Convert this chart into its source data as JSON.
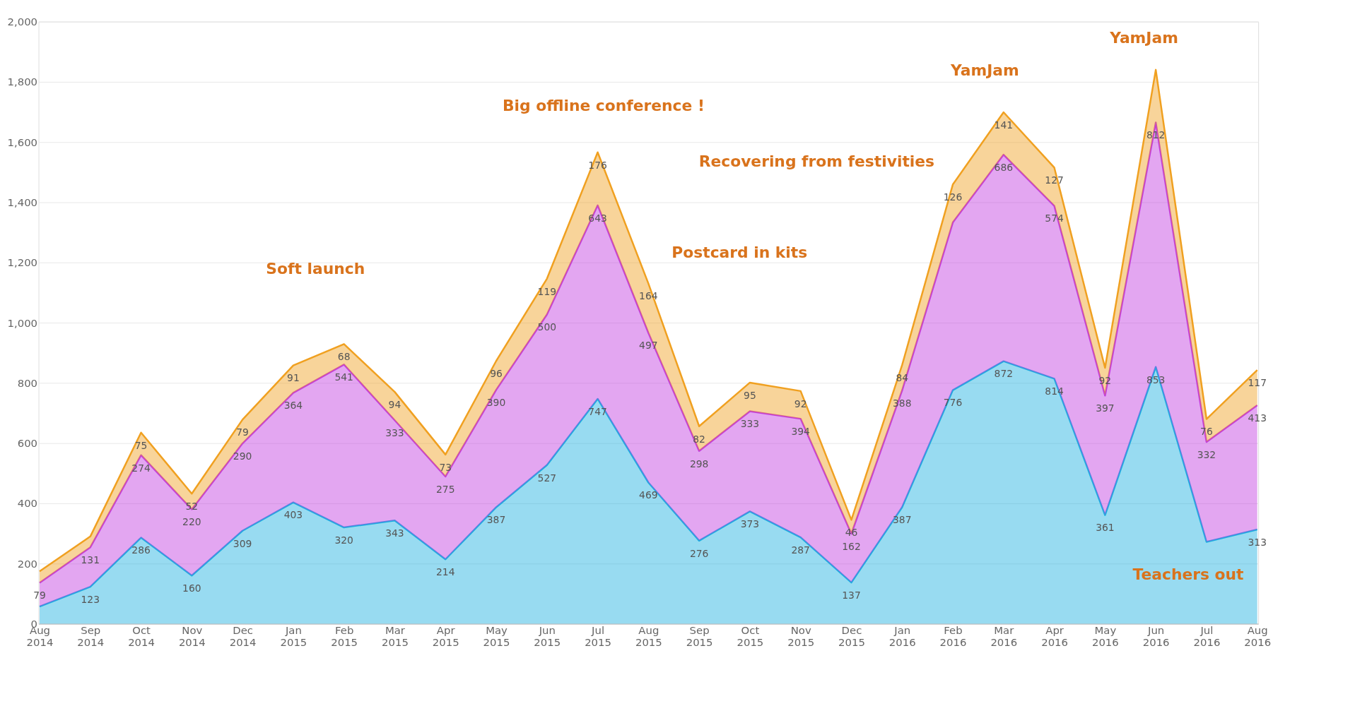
{
  "chart_data": {
    "type": "area",
    "stacked": true,
    "categories": [
      "Aug 2014",
      "Sep 2014",
      "Oct 2014",
      "Nov 2014",
      "Dec 2014",
      "Jan 2015",
      "Feb 2015",
      "Mar 2015",
      "Apr 2015",
      "May 2015",
      "Jun 2015",
      "Jul 2015",
      "Aug 2015",
      "Sep 2015",
      "Oct 2015",
      "Nov 2015",
      "Dec 2015",
      "Jan 2016",
      "Feb 2016",
      "Mar 2016",
      "Apr 2016",
      "May 2016",
      "Jun 2016",
      "Jul 2016",
      "Aug 2016"
    ],
    "series": [
      {
        "color": "#1ab0e0",
        "values": [
          57,
          123,
          286,
          160,
          309,
          403,
          320,
          343,
          214,
          387,
          527,
          747,
          469,
          276,
          373,
          287,
          137,
          387,
          776,
          872,
          814,
          361,
          853,
          272,
          313
        ],
        "value_labels": [
          null,
          "123",
          "286",
          "160",
          "309",
          "403",
          "320",
          "343",
          "214",
          "387",
          "527",
          "747",
          "469",
          "276",
          "373",
          "287",
          "137",
          "387",
          "776",
          "872",
          "814",
          "361",
          "853",
          null,
          "313"
        ]
      },
      {
        "color": "#c23ae0",
        "values": [
          79,
          131,
          274,
          220,
          290,
          364,
          541,
          333,
          275,
          390,
          500,
          643,
          497,
          298,
          333,
          394,
          162,
          388,
          557,
          686,
          574,
          397,
          812,
          332,
          413
        ],
        "value_labels": [
          "79",
          "131",
          "274",
          "220",
          "290",
          "364",
          "541",
          "333",
          "275",
          "390",
          "500",
          "643",
          "497",
          "298",
          "333",
          "394",
          "162",
          "388",
          null,
          "686",
          "574",
          "397",
          "812",
          "332",
          "413"
        ]
      },
      {
        "color": "#f0a020",
        "values": [
          38,
          36,
          75,
          52,
          79,
          91,
          68,
          94,
          73,
          96,
          119,
          176,
          164,
          82,
          95,
          92,
          46,
          84,
          126,
          141,
          127,
          92,
          175,
          76,
          117
        ],
        "value_labels": [
          null,
          null,
          "75",
          "52",
          "79",
          "91",
          "68",
          "94",
          "73",
          "96",
          "119",
          "176",
          "164",
          "82",
          "95",
          "92",
          "46",
          "84",
          "126",
          "141",
          "127",
          "92",
          null,
          "76",
          "117"
        ]
      }
    ],
    "ylim": [
      0,
      2000
    ],
    "yticks": [
      0,
      200,
      400,
      600,
      800,
      {
        "value": 1000,
        "label": "1,000"
      },
      {
        "value": 1200,
        "label": "1,200"
      },
      {
        "value": 1400,
        "label": "1,400"
      },
      {
        "value": 1600,
        "label": "1,600"
      },
      {
        "value": 1800,
        "label": "1,800"
      },
      {
        "value": 2000,
        "label": "2,000"
      }
    ],
    "grid": "y",
    "annotations": [
      "Soft launch",
      "Big offline conference !",
      "Postcard in kits",
      "Recovering from festivities",
      "YamJam",
      "YamJam",
      "Teachers out"
    ]
  }
}
